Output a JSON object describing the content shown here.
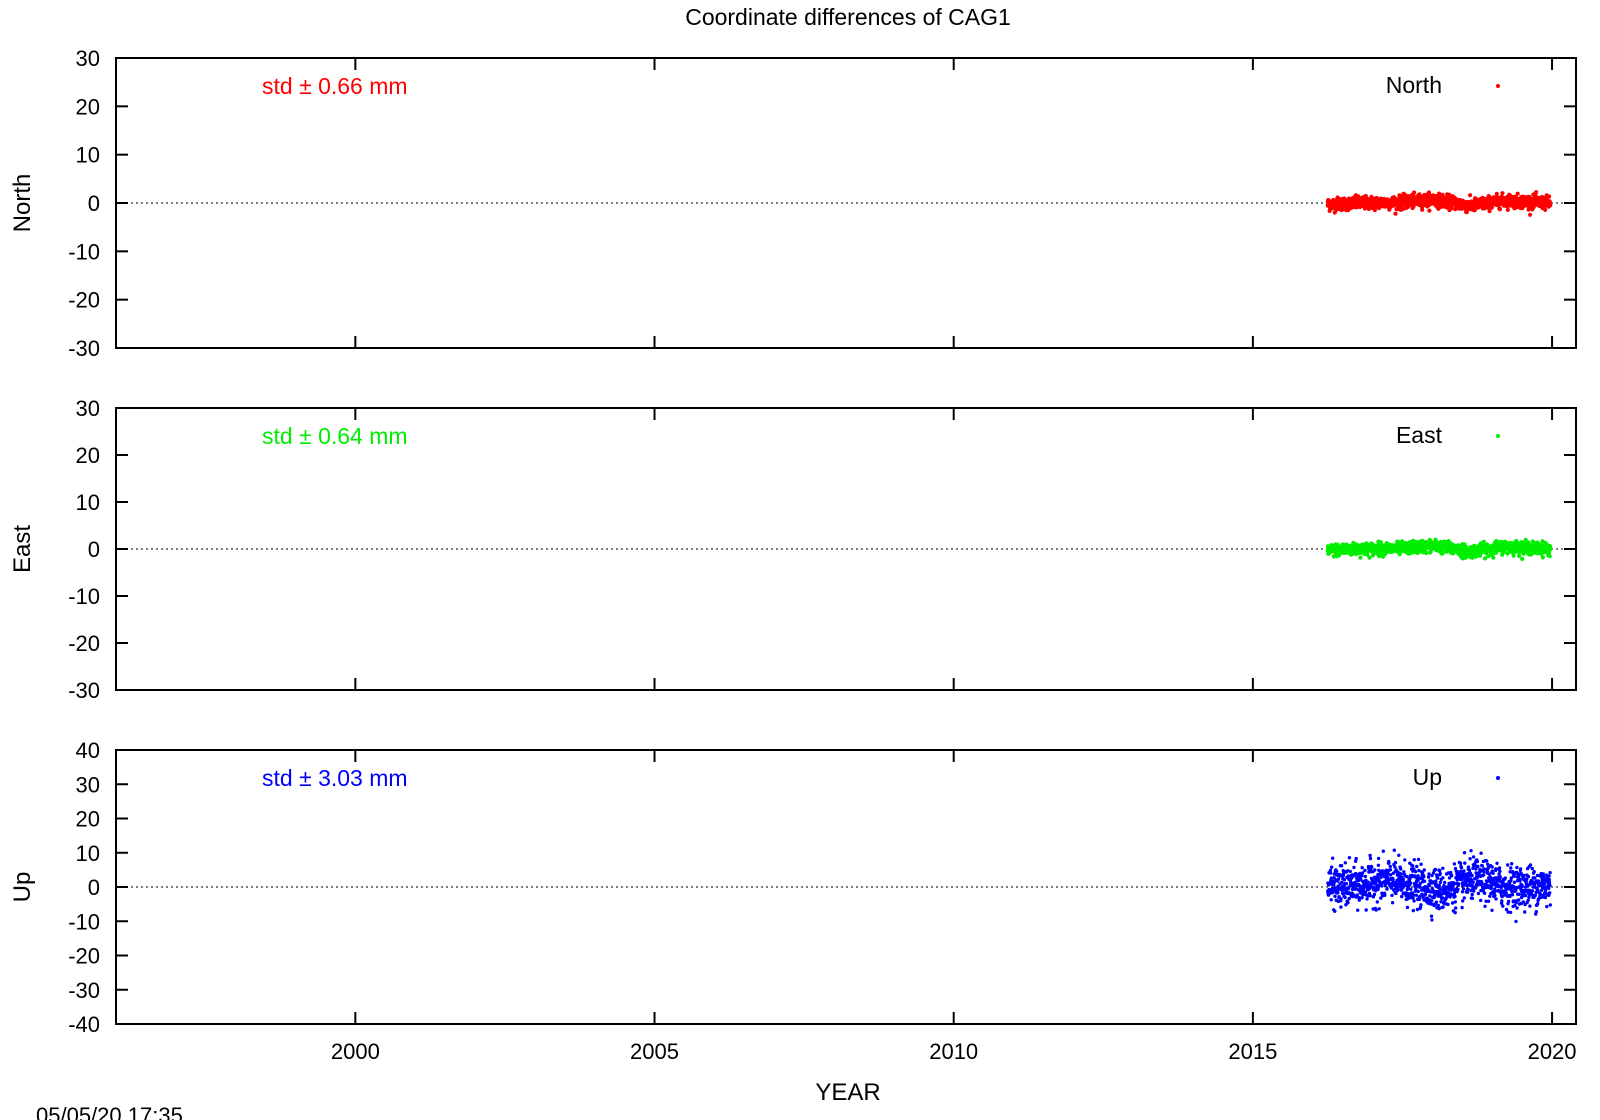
{
  "chart_data": {
    "type": "scatter",
    "title": "Coordinate differences of CAG1",
    "xlabel": "YEAR",
    "timestamp": "05/05/20 17:35",
    "xlim": [
      1996,
      2020.4
    ],
    "x_ticks": [
      "2000",
      "2005",
      "2010",
      "2015",
      "2020"
    ],
    "x_tick_values": [
      2000,
      2005,
      2010,
      2015,
      2020
    ],
    "data_span": [
      2016.25,
      2019.97
    ],
    "panels": [
      {
        "ylabel": "North",
        "series_name": "North",
        "std_label": "std ± 0.66 mm",
        "color": "#ff0000",
        "ylim": [
          -30,
          30
        ],
        "y_ticks": [
          "30",
          "20",
          "10",
          "0",
          "-10",
          "-20",
          "-30"
        ],
        "y_tick_values": [
          30,
          20,
          10,
          0,
          -10,
          -20,
          -30
        ],
        "std": 0.66,
        "trend": [
          [
            2016.25,
            -0.3
          ],
          [
            2016.8,
            0.0
          ],
          [
            2017.5,
            0.1
          ],
          [
            2018.0,
            0.7
          ],
          [
            2018.4,
            0.0
          ],
          [
            2018.6,
            -0.6
          ],
          [
            2019.2,
            0.5
          ],
          [
            2019.97,
            0.0
          ]
        ]
      },
      {
        "ylabel": "East",
        "series_name": "East",
        "std_label": "std ± 0.64 mm",
        "color": "#00ee00",
        "ylim": [
          -30,
          30
        ],
        "y_ticks": [
          "30",
          "20",
          "10",
          "0",
          "-10",
          "-20",
          "-30"
        ],
        "y_tick_values": [
          30,
          20,
          10,
          0,
          -10,
          -20,
          -30
        ],
        "std": 0.64,
        "trend": [
          [
            2016.25,
            -0.3
          ],
          [
            2016.8,
            0.0
          ],
          [
            2017.5,
            0.1
          ],
          [
            2018.0,
            0.7
          ],
          [
            2018.4,
            0.0
          ],
          [
            2018.6,
            -0.6
          ],
          [
            2019.2,
            0.5
          ],
          [
            2019.97,
            0.0
          ]
        ]
      },
      {
        "ylabel": "Up",
        "series_name": "Up",
        "std_label": "std ± 3.03 mm",
        "color": "#0000ff",
        "ylim": [
          -40,
          40
        ],
        "y_ticks": [
          "40",
          "30",
          "20",
          "10",
          "0",
          "-10",
          "-20",
          "-30",
          "-40"
        ],
        "y_tick_values": [
          40,
          30,
          20,
          10,
          0,
          -10,
          -20,
          -30,
          -40
        ],
        "std": 3.03,
        "trend": [
          [
            2016.25,
            0.0
          ],
          [
            2016.8,
            0.5
          ],
          [
            2017.3,
            2.0
          ],
          [
            2017.8,
            0.0
          ],
          [
            2018.2,
            -1.0
          ],
          [
            2018.7,
            2.5
          ],
          [
            2019.2,
            0.0
          ],
          [
            2019.97,
            0.0
          ]
        ]
      }
    ]
  }
}
